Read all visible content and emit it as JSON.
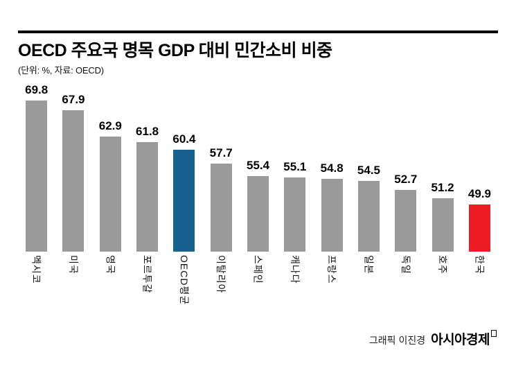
{
  "header": {
    "title": "OECD 주요국 명목 GDP 대비 민간소비 비중",
    "subtitle": "(단위: %, 자료: OECD)"
  },
  "chart_data": {
    "type": "bar",
    "title": "OECD 주요국 명목 GDP 대비 민간소비 비중",
    "unit": "%",
    "source": "OECD",
    "categories": [
      "멕시코",
      "미국",
      "영국",
      "포르투갈",
      "OECD평균",
      "이탈리아",
      "스페인",
      "캐나다",
      "프랑스",
      "일본",
      "독일",
      "호주",
      "한국"
    ],
    "values": [
      69.8,
      67.9,
      62.9,
      61.8,
      60.4,
      57.7,
      55.4,
      55.1,
      54.8,
      54.5,
      52.7,
      51.2,
      49.9
    ],
    "xlabel": "",
    "ylabel": "",
    "ylim": [
      41,
      70
    ],
    "grid": false,
    "legend": false,
    "colors": {
      "default": "#9a9a9a",
      "blue": "#16618e",
      "red": "#ed1c24",
      "blue_index": 4,
      "red_index": 12
    }
  },
  "footer": {
    "credit": "그래픽 이진경",
    "brand": "아시아경제"
  }
}
